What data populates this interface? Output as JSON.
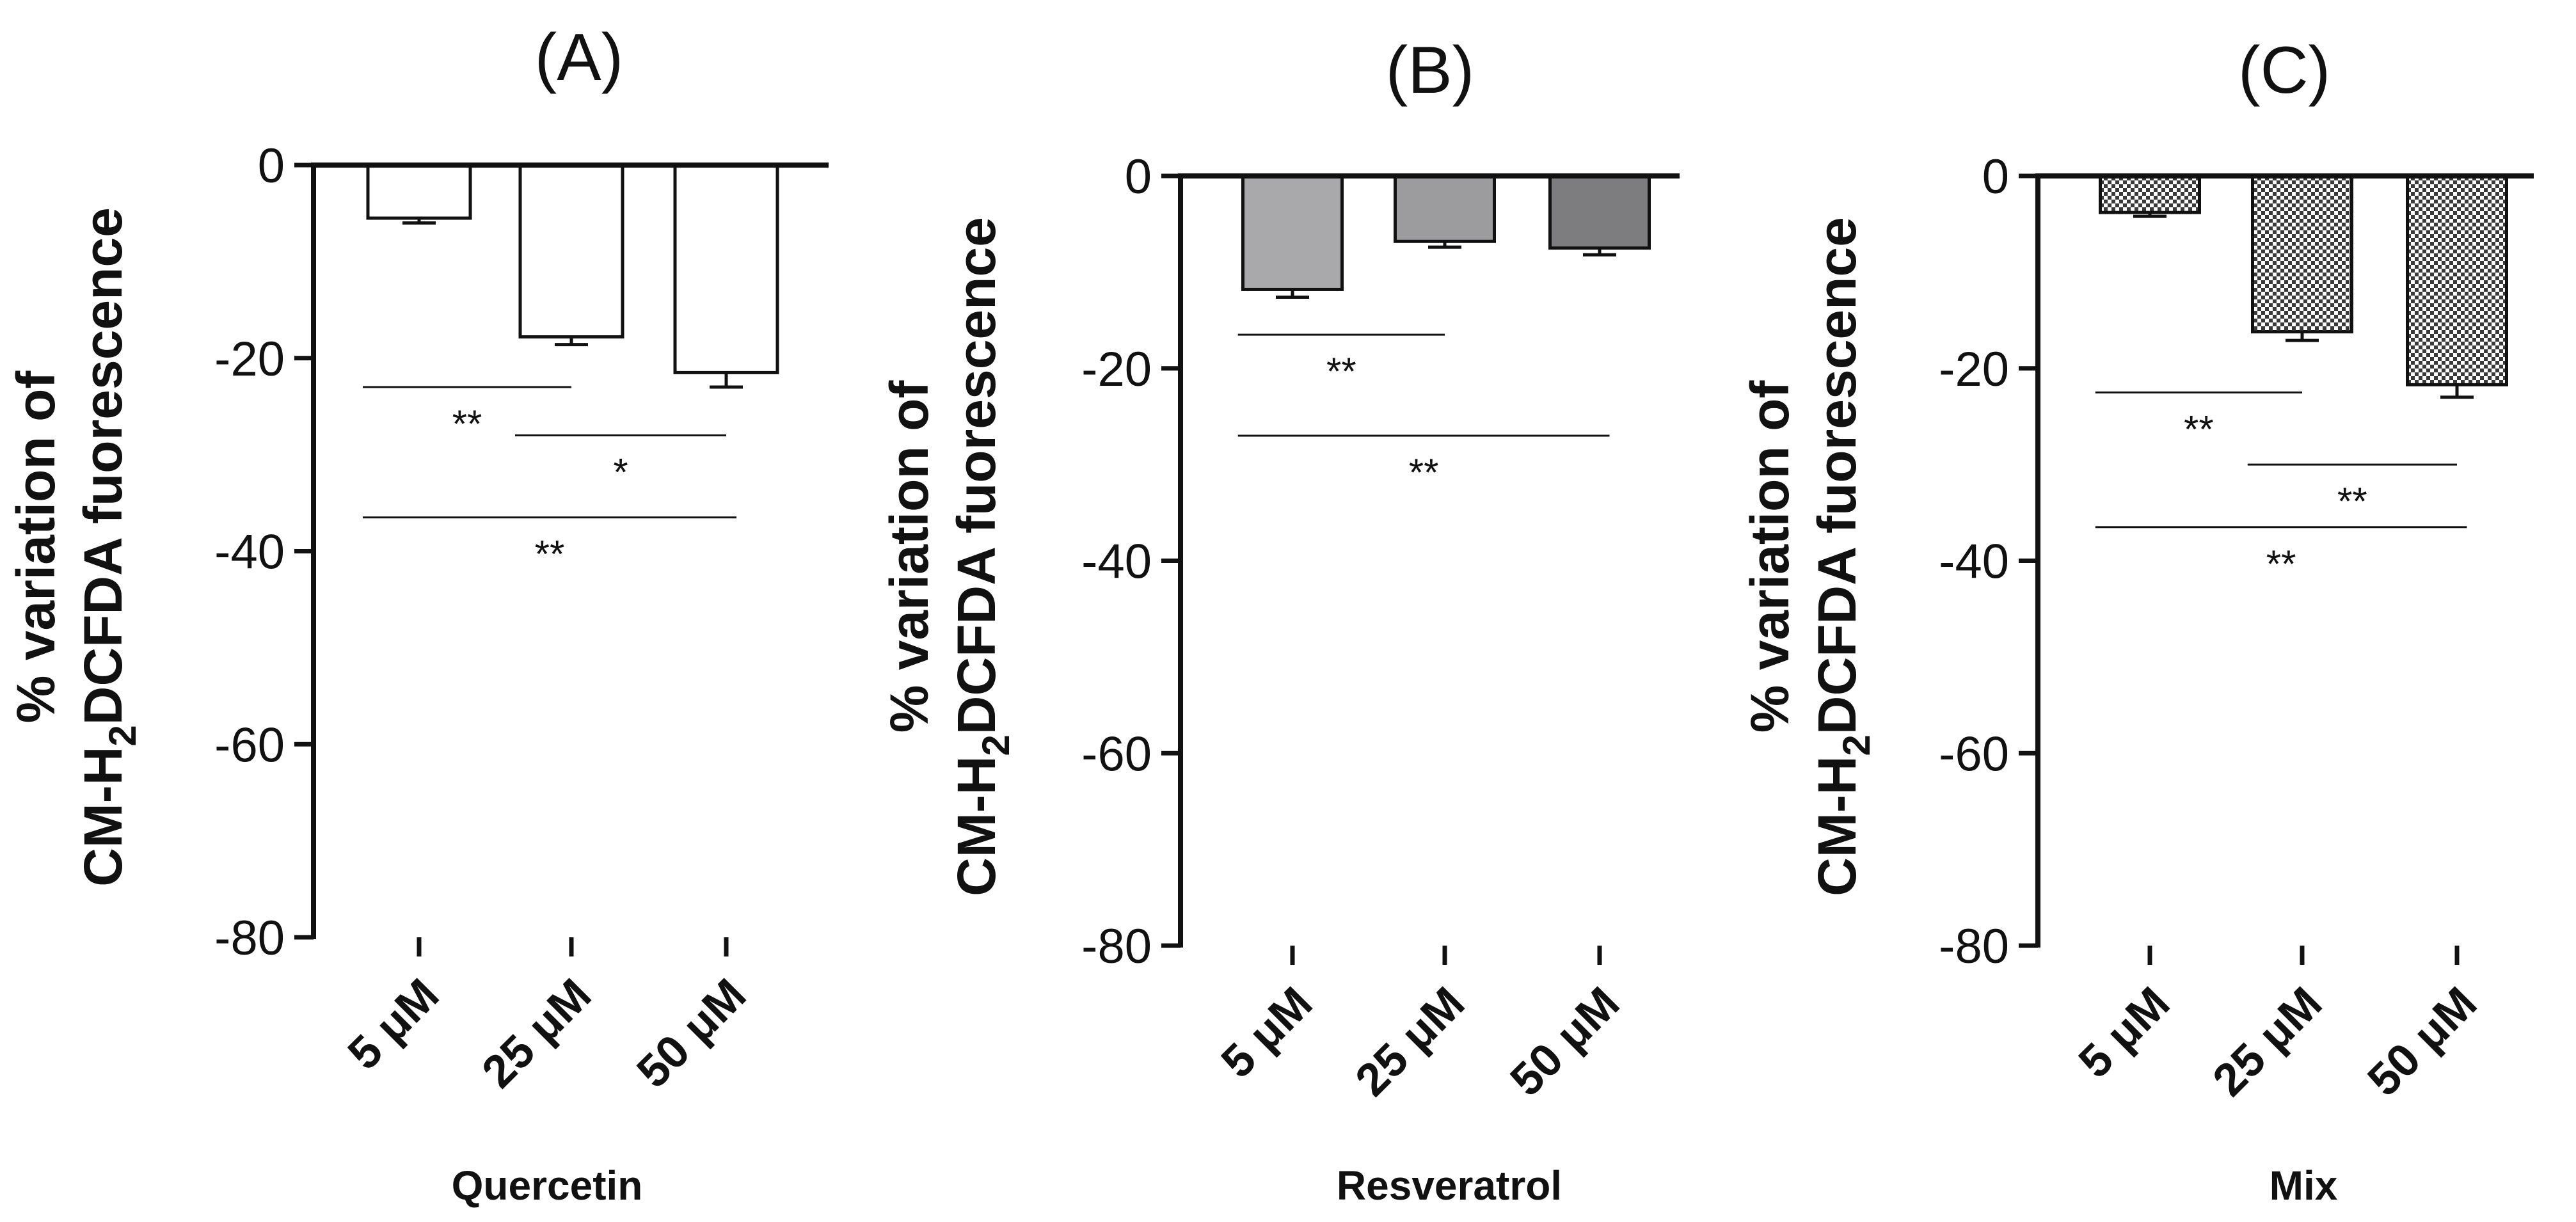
{
  "chart_data": [
    {
      "type": "bar",
      "panel": "(A)",
      "title": "(A)",
      "xlabel": "Quercetin",
      "ylabel_line1": "% variation of",
      "ylabel_line2_pre": "CM-H",
      "ylabel_line2_sub": "2",
      "ylabel_line2_post": "DCFDA fuorescence",
      "categories": [
        "5 μM",
        "25 μM",
        "50 μM"
      ],
      "values": [
        -5.5,
        -17.8,
        -21.5
      ],
      "errors": [
        0.5,
        0.8,
        1.5
      ],
      "ylim": [
        -80,
        0
      ],
      "yticks": [
        0,
        -20,
        -40,
        -60,
        -80
      ],
      "bar_fill": "#ffffff",
      "bar_pattern": "none",
      "significance": [
        {
          "from": 0,
          "to": 1,
          "label": "**",
          "y": -23
        },
        {
          "from": 1,
          "to": 2,
          "label": "*",
          "y": -28
        },
        {
          "from": 0,
          "to": 2,
          "label": "**",
          "y": -36.5
        }
      ]
    },
    {
      "type": "bar",
      "panel": "(B)",
      "title": "(B)",
      "xlabel": "Resveratrol",
      "ylabel_line1": "% variation of",
      "ylabel_line2_pre": "CM-H",
      "ylabel_line2_sub": "2",
      "ylabel_line2_post": "DCFDA fuorescence",
      "categories": [
        "5 μM",
        "25 μM",
        "50 μM"
      ],
      "values": [
        -11.8,
        -6.8,
        -7.5
      ],
      "errors": [
        0.8,
        0.6,
        0.7
      ],
      "ylim": [
        -80,
        0
      ],
      "yticks": [
        0,
        -20,
        -40,
        -60,
        -80
      ],
      "bar_fills": [
        "#a9a9ac",
        "#9c9c9f",
        "#7d7d80"
      ],
      "bar_pattern": "none",
      "significance": [
        {
          "from": 0,
          "to": 1,
          "label": "**",
          "y": -16.5
        },
        {
          "from": 0,
          "to": 2,
          "label": "**",
          "y": -27
        }
      ]
    },
    {
      "type": "bar",
      "panel": "(C)",
      "title": "(C)",
      "xlabel": "Mix",
      "ylabel_line1": "% variation of",
      "ylabel_line2_pre": "CM-H",
      "ylabel_line2_sub": "2",
      "ylabel_line2_post": "DCFDA fuorescence",
      "categories": [
        "5 μM",
        "25 μM",
        "50 μM"
      ],
      "values": [
        -3.8,
        -16.2,
        -21.7
      ],
      "errors": [
        0.4,
        0.9,
        1.3
      ],
      "ylim": [
        -80,
        0
      ],
      "yticks": [
        0,
        -20,
        -40,
        -60,
        -80
      ],
      "bar_fill": "#ffffff",
      "bar_pattern": "checker",
      "significance": [
        {
          "from": 0,
          "to": 1,
          "label": "**",
          "y": -22.5
        },
        {
          "from": 1,
          "to": 2,
          "label": "**",
          "y": -30
        },
        {
          "from": 0,
          "to": 2,
          "label": "**",
          "y": -36.5
        }
      ]
    }
  ]
}
